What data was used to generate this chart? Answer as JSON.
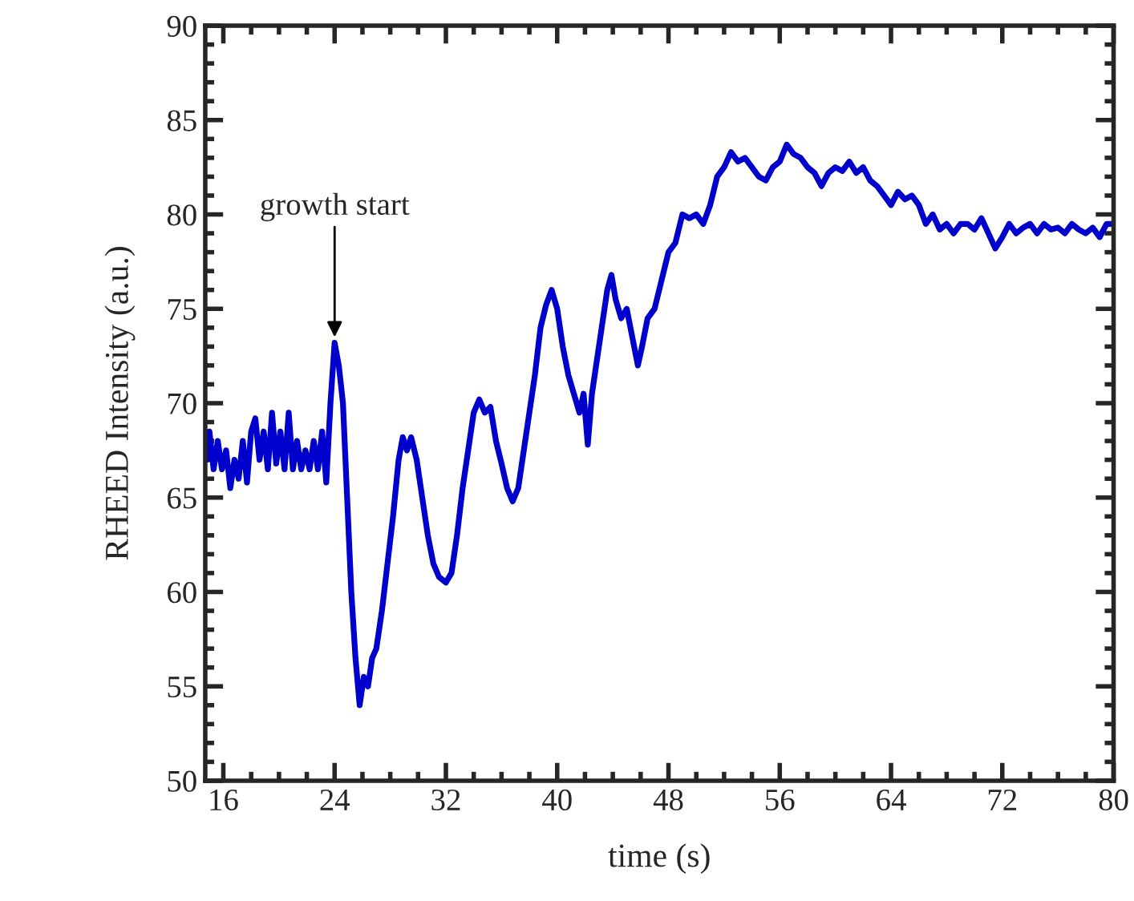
{
  "chart_data": {
    "type": "line",
    "xlabel": "time (s)",
    "ylabel": "RHEED Intensity (a.u.)",
    "x": [
      14.8,
      15.0,
      15.3,
      15.6,
      15.9,
      16.2,
      16.5,
      16.8,
      17.1,
      17.4,
      17.7,
      18.0,
      18.3,
      18.6,
      18.9,
      19.2,
      19.5,
      19.8,
      20.1,
      20.4,
      20.7,
      21.0,
      21.3,
      21.6,
      21.9,
      22.2,
      22.5,
      22.8,
      23.1,
      23.4,
      23.7,
      24.0,
      24.3,
      24.6,
      24.9,
      25.2,
      25.5,
      25.8,
      26.1,
      26.4,
      26.7,
      27.0,
      27.4,
      27.8,
      28.2,
      28.6,
      28.9,
      29.2,
      29.5,
      29.9,
      30.3,
      30.7,
      31.1,
      31.5,
      32.0,
      32.4,
      32.8,
      33.2,
      33.6,
      34.0,
      34.4,
      34.8,
      35.2,
      35.6,
      36.0,
      36.4,
      36.8,
      37.2,
      37.6,
      38.0,
      38.4,
      38.8,
      39.2,
      39.6,
      40.0,
      40.4,
      40.8,
      41.2,
      41.6,
      41.9,
      42.2,
      42.5,
      42.8,
      43.2,
      43.6,
      43.9,
      44.2,
      44.6,
      45.0,
      45.4,
      45.8,
      46.1,
      46.5,
      47.0,
      47.5,
      48.0,
      48.5,
      49.0,
      49.5,
      50.0,
      50.5,
      51.0,
      51.5,
      52.0,
      52.5,
      53.0,
      53.5,
      54.0,
      54.5,
      55.0,
      55.5,
      56.0,
      56.5,
      57.0,
      57.5,
      58.0,
      58.5,
      59.0,
      59.5,
      60.0,
      60.5,
      61.0,
      61.5,
      62.0,
      62.5,
      63.0,
      63.5,
      64.0,
      64.5,
      65.0,
      65.5,
      66.0,
      66.5,
      67.0,
      67.5,
      68.0,
      68.5,
      69.0,
      69.5,
      70.0,
      70.5,
      71.0,
      71.5,
      72.0,
      72.5,
      73.0,
      73.5,
      74.0,
      74.5,
      75.0,
      75.5,
      76.0,
      76.5,
      77.0,
      77.5,
      78.0,
      78.5,
      79.0,
      79.5,
      80.0
    ],
    "series": [
      {
        "color": "#0000cc",
        "values": [
          67,
          68.5,
          66.5,
          68,
          66.5,
          67.5,
          65.5,
          67,
          66,
          68,
          65.8,
          68.5,
          69.2,
          67,
          68.5,
          66.5,
          69.5,
          66.8,
          68.5,
          66.5,
          69.5,
          66.5,
          68,
          66.5,
          67.5,
          66.5,
          68,
          66.5,
          68.5,
          65.8,
          70,
          73.2,
          72,
          70,
          65,
          60,
          56.5,
          54,
          55.5,
          55,
          56.5,
          57,
          59,
          61.5,
          64,
          67,
          68.2,
          67.5,
          68.2,
          67,
          65,
          63,
          61.5,
          60.8,
          60.5,
          61,
          63,
          65.5,
          67.5,
          69.5,
          70.2,
          69.5,
          69.8,
          68,
          66.8,
          65.5,
          64.8,
          65.5,
          67.5,
          69.5,
          71.5,
          74,
          75.2,
          76,
          75,
          73,
          71.5,
          70.5,
          69.5,
          70.5,
          67.8,
          70.5,
          72,
          74,
          76,
          76.8,
          75.5,
          74.5,
          75,
          73.5,
          72,
          73,
          74.5,
          75,
          76.5,
          78,
          78.5,
          80,
          79.8,
          80,
          79.5,
          80.5,
          82,
          82.5,
          83.3,
          82.8,
          83,
          82.5,
          82,
          81.8,
          82.5,
          82.8,
          83.7,
          83.2,
          83,
          82.5,
          82.2,
          81.5,
          82.2,
          82.5,
          82.3,
          82.8,
          82.2,
          82.5,
          81.8,
          81.5,
          81,
          80.5,
          81.2,
          80.8,
          81,
          80.5,
          79.5,
          80,
          79.2,
          79.5,
          79,
          79.5,
          79.5,
          79.2,
          79.8,
          79,
          78.2,
          78.8,
          79.5,
          79,
          79.3,
          79.5,
          79,
          79.5,
          79.2,
          79.3,
          79,
          79.5,
          79.2,
          79,
          79.3,
          78.8,
          79.5,
          79.5
        ]
      }
    ],
    "xlim": [
      14.7,
      80
    ],
    "ylim": [
      50,
      90
    ],
    "xticks": [
      16,
      24,
      32,
      40,
      48,
      56,
      64,
      72,
      80
    ],
    "yticks": [
      50,
      55,
      60,
      65,
      70,
      75,
      80,
      85,
      90
    ],
    "annotations": [
      {
        "text": "growth start",
        "x": 24,
        "y": 73.5
      }
    ],
    "grid": false
  }
}
